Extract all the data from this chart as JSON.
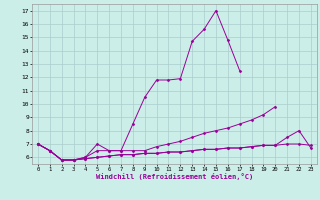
{
  "xlabel": "Windchill (Refroidissement éolien,°C)",
  "bg_color": "#cceee8",
  "line_color": "#990099",
  "grid_color": "#aacccc",
  "x_values": [
    0,
    1,
    2,
    3,
    4,
    5,
    6,
    7,
    8,
    9,
    10,
    11,
    12,
    13,
    14,
    15,
    16,
    17,
    18,
    19,
    20,
    21,
    22,
    23
  ],
  "series1": [
    7.0,
    6.5,
    5.8,
    5.8,
    6.0,
    7.0,
    6.5,
    6.5,
    8.5,
    10.5,
    11.8,
    11.8,
    11.9,
    14.7,
    15.6,
    17.0,
    14.8,
    12.5,
    null,
    null,
    null,
    null,
    null,
    null
  ],
  "series2": [
    7.0,
    6.5,
    5.8,
    5.8,
    6.0,
    6.5,
    6.5,
    6.5,
    6.5,
    6.5,
    6.8,
    7.0,
    7.2,
    7.5,
    7.8,
    8.0,
    8.2,
    8.5,
    8.8,
    9.2,
    9.8,
    null,
    null,
    null
  ],
  "series3": [
    7.0,
    6.5,
    5.8,
    5.8,
    5.9,
    6.0,
    6.1,
    6.2,
    6.2,
    6.3,
    6.3,
    6.4,
    6.4,
    6.5,
    6.6,
    6.6,
    6.7,
    6.7,
    6.8,
    6.9,
    6.9,
    7.0,
    7.0,
    6.9
  ],
  "series4": [
    7.0,
    6.5,
    5.8,
    5.8,
    5.9,
    6.0,
    6.1,
    6.2,
    6.2,
    6.3,
    6.3,
    6.4,
    6.4,
    6.5,
    6.6,
    6.6,
    6.7,
    6.7,
    6.8,
    6.9,
    6.9,
    7.5,
    8.0,
    6.7
  ],
  "ylim_min": 5.5,
  "ylim_max": 17.5,
  "yticks": [
    6,
    7,
    8,
    9,
    10,
    11,
    12,
    13,
    14,
    15,
    16,
    17
  ],
  "xlim_min": -0.5,
  "xlim_max": 23.5
}
